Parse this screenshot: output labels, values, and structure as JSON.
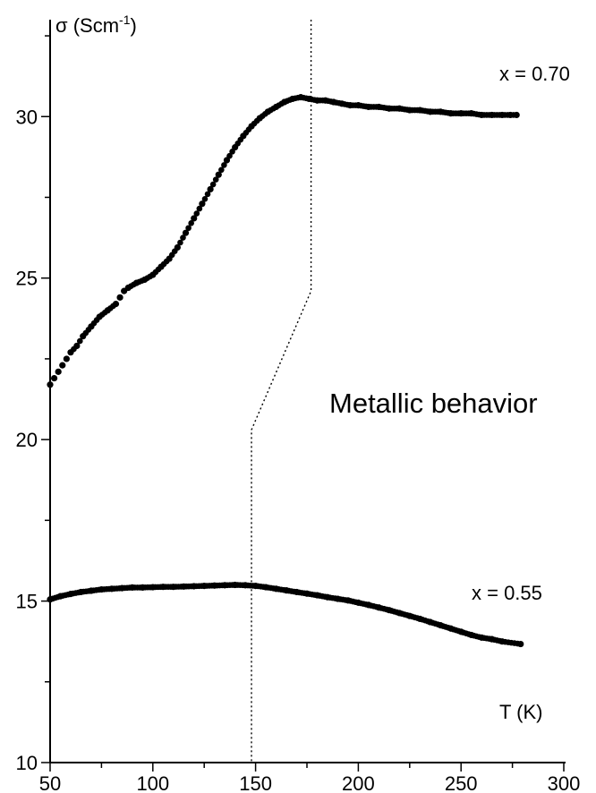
{
  "chart_data": {
    "type": "scatter",
    "title": "",
    "xlabel": "T (K)",
    "ylabel_main": "σ (Scm",
    "ylabel_exp": "-1",
    "ylabel_close": ")",
    "xlim": [
      50,
      300
    ],
    "ylim": [
      10,
      33
    ],
    "x_ticks": [
      50,
      100,
      150,
      200,
      250,
      300
    ],
    "y_ticks": [
      10,
      15,
      20,
      25,
      30
    ],
    "x_tick_labels": [
      "50",
      "100",
      "150",
      "200",
      "250",
      "300"
    ],
    "y_tick_labels": [
      "10",
      "15",
      "20",
      "25",
      "30"
    ],
    "annotation": "Metallic behavior",
    "series": [
      {
        "name": "x = 0.70",
        "x": [
          50,
          52,
          54,
          56,
          58,
          60,
          63,
          66,
          70,
          74,
          78,
          82,
          84,
          86,
          88,
          92,
          96,
          100,
          104,
          108,
          112,
          116,
          120,
          124,
          128,
          132,
          136,
          140,
          144,
          148,
          152,
          156,
          160,
          164,
          168,
          172,
          176,
          180,
          184,
          188,
          192,
          196,
          200,
          205,
          210,
          215,
          220,
          225,
          230,
          235,
          240,
          245,
          250,
          255,
          260,
          265,
          270,
          274,
          277
        ],
        "values": [
          21.7,
          21.9,
          22.1,
          22.3,
          22.5,
          22.7,
          22.9,
          23.2,
          23.5,
          23.8,
          24.0,
          24.2,
          24.4,
          24.6,
          24.7,
          24.85,
          24.95,
          25.1,
          25.35,
          25.6,
          25.95,
          26.4,
          26.85,
          27.3,
          27.75,
          28.2,
          28.65,
          29.05,
          29.4,
          29.7,
          29.95,
          30.15,
          30.3,
          30.45,
          30.55,
          30.6,
          30.55,
          30.5,
          30.5,
          30.45,
          30.4,
          30.35,
          30.35,
          30.3,
          30.3,
          30.25,
          30.25,
          30.2,
          30.2,
          30.15,
          30.15,
          30.1,
          30.1,
          30.1,
          30.05,
          30.05,
          30.05,
          30.05,
          30.05
        ]
      },
      {
        "name": "x = 0.55",
        "x": [
          50,
          55,
          60,
          65,
          70,
          75,
          80,
          85,
          90,
          95,
          100,
          105,
          110,
          115,
          120,
          125,
          130,
          135,
          140,
          145,
          150,
          155,
          160,
          165,
          170,
          175,
          180,
          185,
          190,
          195,
          200,
          205,
          210,
          215,
          220,
          225,
          230,
          235,
          240,
          245,
          250,
          255,
          260,
          265,
          270,
          279
        ],
        "values": [
          15.05,
          15.15,
          15.22,
          15.28,
          15.32,
          15.36,
          15.38,
          15.4,
          15.42,
          15.42,
          15.43,
          15.44,
          15.44,
          15.45,
          15.46,
          15.47,
          15.48,
          15.49,
          15.5,
          15.49,
          15.47,
          15.43,
          15.38,
          15.33,
          15.28,
          15.23,
          15.18,
          15.12,
          15.07,
          15.02,
          14.95,
          14.88,
          14.8,
          14.72,
          14.63,
          14.54,
          14.45,
          14.35,
          14.25,
          14.15,
          14.05,
          13.95,
          13.87,
          13.82,
          13.75,
          13.67
        ]
      }
    ],
    "guide_line": {
      "style": "dotted",
      "x": [
        177,
        177,
        148,
        148
      ],
      "y": [
        33,
        24.6,
        20.3,
        10
      ]
    }
  }
}
